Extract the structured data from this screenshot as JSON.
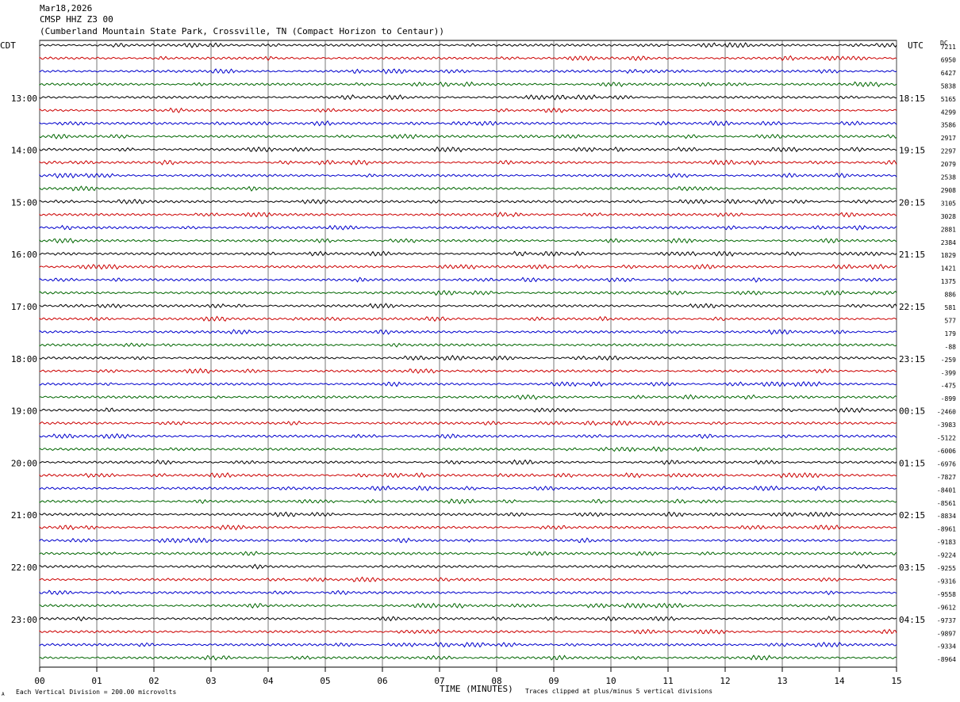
{
  "header": {
    "date": "Mar18,2026",
    "station": "CMSP HHZ Z3 00",
    "location": "(Cumberland Mountain State Park, Crossville, TN (Compact Horizon to Centaur))"
  },
  "left_zone": "CDT",
  "right_zone": "UTC",
  "dc_label": "DC",
  "footer": {
    "scale_note": "Each Vertical Division =  200.00 microvolts",
    "clip_note": "Traces clipped at plus/minus 5 vertical divisions",
    "corner_mark": "A"
  },
  "colors": {
    "trace_cycle": [
      "#000000",
      "#cc0000",
      "#0000cc",
      "#006600"
    ],
    "grid": "#000000"
  },
  "chart_data": {
    "type": "line",
    "xlabel": "TIME (MINUTES)",
    "xlim": [
      0,
      15
    ],
    "x_ticks": [
      "00",
      "01",
      "02",
      "03",
      "04",
      "05",
      "06",
      "07",
      "08",
      "09",
      "10",
      "11",
      "12",
      "13",
      "14",
      "15"
    ],
    "rows_per_hour": 4,
    "rows": 48,
    "left_hour_labels": [
      "13:00",
      "14:00",
      "15:00",
      "16:00",
      "17:00",
      "18:00",
      "19:00",
      "20:00",
      "21:00",
      "22:00",
      "23:00"
    ],
    "right_hour_labels": [
      "18:15",
      "19:15",
      "20:15",
      "21:15",
      "22:15",
      "23:15",
      "00:15",
      "01:15",
      "02:15",
      "03:15",
      "04:15"
    ],
    "dc_offsets": [
      "7211",
      "6950",
      "6427",
      "5838",
      "5165",
      "4299",
      "3586",
      "2917",
      "2297",
      "2079",
      "2538",
      "2908",
      "3105",
      "3028",
      "2881",
      "2384",
      "1829",
      "1421",
      "1375",
      "886",
      "581",
      "577",
      "179",
      "-88",
      "-259",
      "-399",
      "-475",
      "-899",
      "-2460",
      "-3983",
      "-5122",
      "-6006",
      "-6976",
      "-7827",
      "-8401",
      "-8561",
      "-8834",
      "-8961",
      "-9183",
      "-9224",
      "-9255",
      "-9316",
      "-9558",
      "-9612",
      "-9737",
      "-9897",
      "-9334",
      "-8964"
    ]
  }
}
